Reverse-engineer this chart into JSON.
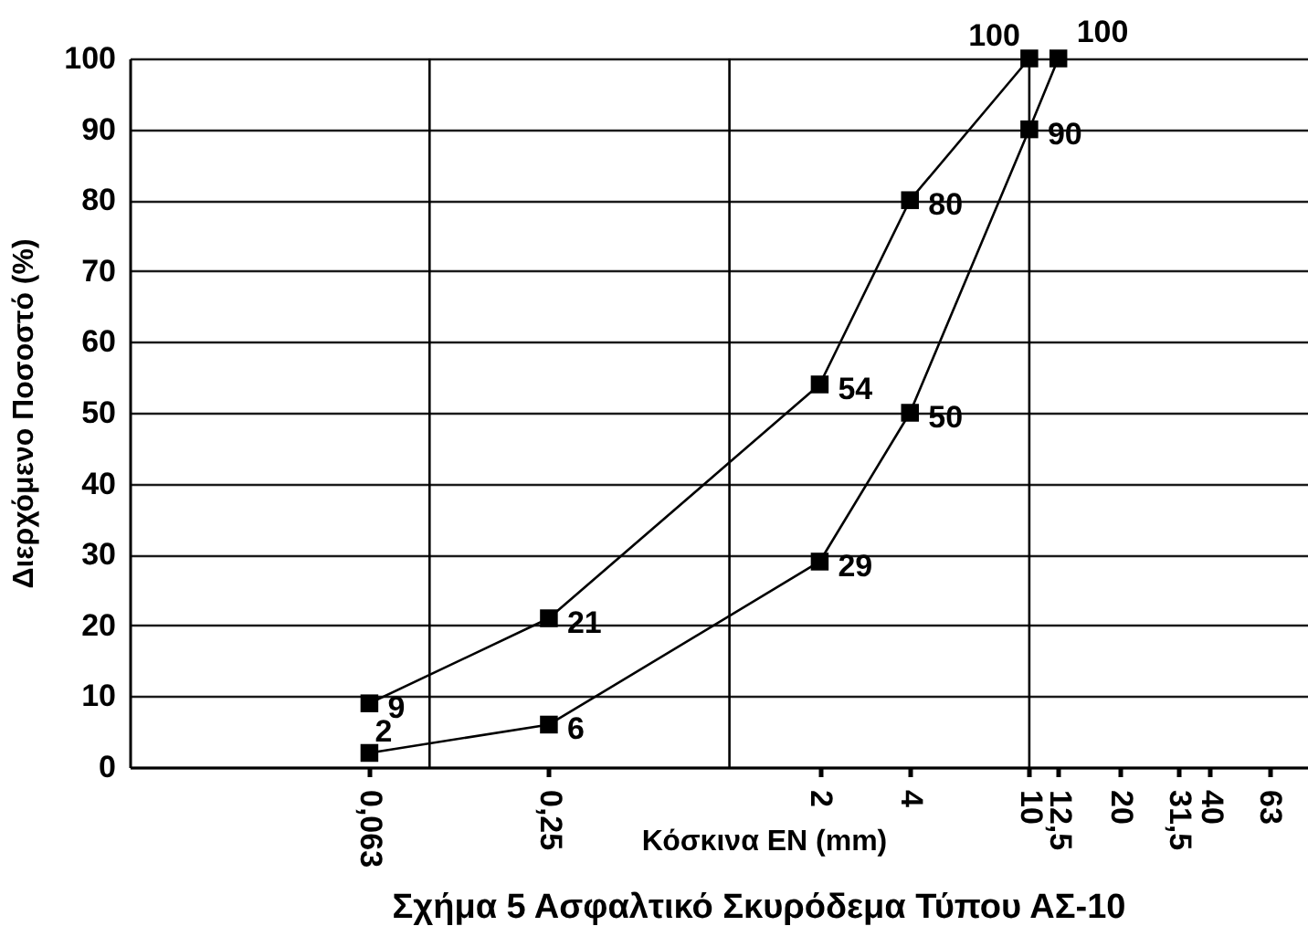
{
  "chart_data": {
    "type": "line",
    "title": "Σχήμα 5 Ασφαλτικό Σκυρόδεμα Τύπου ΑΣ-10",
    "xlabel": "Κόσκινα EN (mm)",
    "ylabel": "Διερχόμενο Ποσοστό (%)",
    "series": [
      {
        "color": "#000000",
        "x": [
          0.063,
          0.25,
          2,
          4,
          10
        ],
        "values": [
          9,
          21,
          54,
          80,
          100
        ]
      },
      {
        "color": "#000000",
        "x": [
          0.063,
          0.25,
          2,
          4,
          10,
          12.5
        ],
        "values": [
          2,
          6,
          29,
          50,
          90,
          100
        ]
      }
    ],
    "log": "x",
    "xlim": [
      0.01,
      85
    ],
    "xticks": [
      {
        "value": 0.063,
        "label": "0,063"
      },
      {
        "value": 0.25,
        "label": "0,25"
      },
      2,
      4,
      10,
      {
        "value": 12.5,
        "label": "12,5"
      },
      20,
      {
        "value": 31.5,
        "label": "31,5"
      },
      40,
      63
    ],
    "ylim": [
      0,
      100
    ],
    "yticks": [
      0,
      10,
      20,
      30,
      40,
      50,
      60,
      70,
      80,
      90,
      100
    ],
    "grid": "y",
    "ref_lines": [
      {
        "axis": "x",
        "value": 0.1
      },
      {
        "axis": "x",
        "value": 1
      },
      {
        "axis": "x",
        "value": 10
      }
    ],
    "marker": "square",
    "line_style": "solid",
    "data_labels": true
  }
}
